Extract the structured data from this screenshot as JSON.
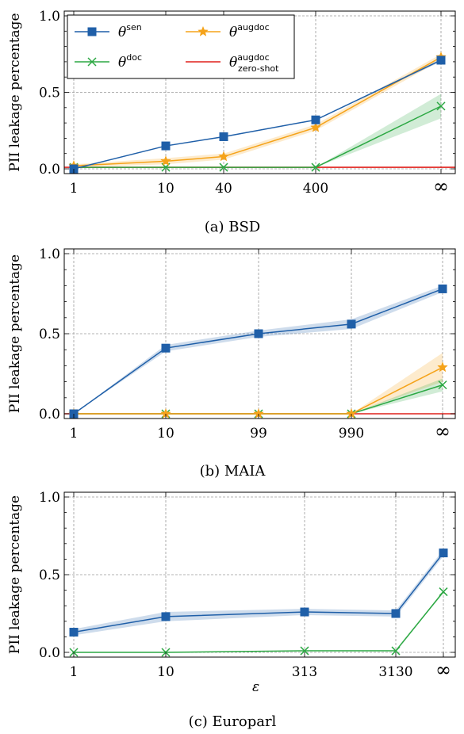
{
  "chart_data": [
    {
      "type": "line",
      "caption": "(a) BSD",
      "ylabel": "PII leakage percentage",
      "xlabel": "",
      "x_tick_labels": [
        "1",
        "10",
        "40",
        "400",
        "∞"
      ],
      "y_ticks": [
        "0.0",
        "0.5",
        "1.0"
      ],
      "ylim": [
        0,
        1
      ],
      "grid": true,
      "legend": {
        "placement": "top-left",
        "entries": [
          {
            "key": "sen",
            "base": "θ",
            "sup": "sen",
            "sub": ""
          },
          {
            "key": "augdoc",
            "base": "θ",
            "sup": "augdoc",
            "sub": ""
          },
          {
            "key": "doc",
            "base": "θ",
            "sup": "doc",
            "sub": ""
          },
          {
            "key": "zeroshot",
            "base": "θ",
            "sup": "augdoc",
            "sub": "zero-shot"
          }
        ]
      },
      "series": [
        {
          "key": "sen",
          "color": "#1f5fa8",
          "marker": "square",
          "values": [
            0.0,
            0.15,
            0.21,
            0.32,
            0.71
          ],
          "band": [
            0,
            0,
            0,
            0,
            0.01
          ]
        },
        {
          "key": "augdoc",
          "color": "#f5a31a",
          "marker": "star",
          "values": [
            0.02,
            0.05,
            0.08,
            0.27,
            0.73
          ],
          "band": [
            0.01,
            0.02,
            0.02,
            0.02,
            0.02
          ]
        },
        {
          "key": "doc",
          "color": "#2ca843",
          "marker": "x",
          "values": [
            0.01,
            0.01,
            0.01,
            0.01,
            0.41
          ],
          "band": [
            0,
            0,
            0,
            0,
            0.08
          ]
        },
        {
          "key": "zeroshot",
          "color": "#e0201b",
          "marker": "hline",
          "values": [
            0.01
          ]
        }
      ]
    },
    {
      "type": "line",
      "caption": "(b) MAIA",
      "ylabel": "PII leakage percentage",
      "xlabel": "",
      "x_tick_labels": [
        "1",
        "10",
        "99",
        "990",
        "∞"
      ],
      "y_ticks": [
        "0.0",
        "0.5",
        "1.0"
      ],
      "ylim": [
        0,
        1
      ],
      "grid": true,
      "series": [
        {
          "key": "sen",
          "color": "#1f5fa8",
          "marker": "square",
          "values": [
            0.0,
            0.41,
            0.5,
            0.56,
            0.78
          ],
          "band": [
            0,
            0.02,
            0.02,
            0.03,
            0.02
          ]
        },
        {
          "key": "augdoc",
          "color": "#f5a31a",
          "marker": "star",
          "values": [
            0.0,
            0.0,
            0.0,
            0.0,
            0.29
          ],
          "band": [
            0,
            0,
            0,
            0,
            0.09
          ]
        },
        {
          "key": "doc",
          "color": "#2ca843",
          "marker": "x",
          "values": [
            0.0,
            0.0,
            0.0,
            0.0,
            0.18
          ],
          "band": [
            0,
            0,
            0,
            0,
            0.04
          ]
        },
        {
          "key": "zeroshot",
          "color": "#e0201b",
          "marker": "hline",
          "values": [
            0.0
          ]
        }
      ]
    },
    {
      "type": "line",
      "caption": "(c) Europarl",
      "ylabel": "PII leakage percentage",
      "xlabel": "ε",
      "x_tick_labels": [
        "1",
        "10",
        "313",
        "3130",
        "∞"
      ],
      "y_ticks": [
        "0.0",
        "0.5",
        "1.0"
      ],
      "ylim": [
        0,
        1
      ],
      "grid": true,
      "series": [
        {
          "key": "sen",
          "color": "#1f5fa8",
          "marker": "square",
          "values": [
            0.13,
            0.23,
            0.26,
            0.25,
            0.64
          ],
          "band": [
            0.02,
            0.03,
            0.02,
            0.02,
            0.02
          ]
        },
        {
          "key": "doc",
          "color": "#2ca843",
          "marker": "x",
          "values": [
            0.0,
            0.0,
            0.01,
            0.01,
            0.39
          ],
          "band": [
            0,
            0,
            0,
            0,
            0.01
          ]
        }
      ]
    }
  ]
}
